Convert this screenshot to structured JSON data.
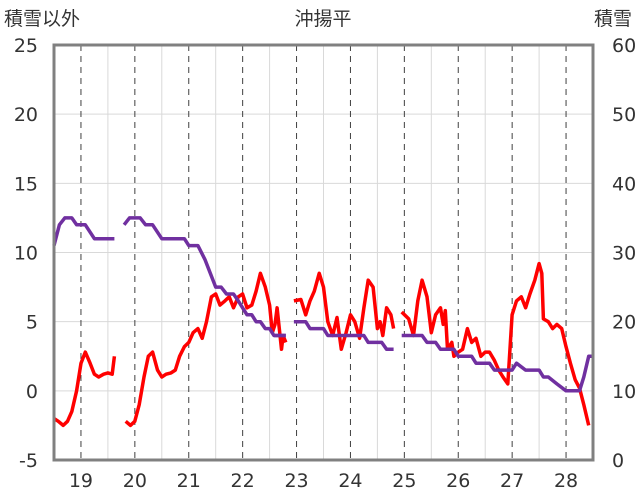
{
  "chart_data": {
    "type": "line",
    "title": "沖揚平",
    "ylabel_left": "積雪以外",
    "ylabel_right": "積雪",
    "categories": [
      "19",
      "20",
      "21",
      "22",
      "23",
      "24",
      "25",
      "26",
      "27",
      "28"
    ],
    "ylim_left": [
      -5,
      25
    ],
    "yticks_left": [
      "-5",
      "0",
      "5",
      "10",
      "15",
      "20",
      "25"
    ],
    "ylim_right": [
      0,
      60
    ],
    "yticks_right": [
      "0",
      "10",
      "20",
      "30",
      "40",
      "50",
      "60"
    ],
    "grid": {
      "horizontal": true,
      "vertical_dashed": true
    },
    "colors": {
      "red_series": "#ff0000",
      "purple_series": "#7030a0",
      "frame": "#808080",
      "grid": "#d9d9d9"
    },
    "series": [
      {
        "axis": "left",
        "color": "#ff0000",
        "segments": [
          [
            [
              18.5,
              -2.0
            ],
            [
              18.58,
              -2.2
            ],
            [
              18.67,
              -2.5
            ],
            [
              18.75,
              -2.2
            ],
            [
              18.83,
              -1.5
            ],
            [
              18.92,
              0.0
            ],
            [
              19.0,
              2.0
            ],
            [
              19.08,
              2.8
            ],
            [
              19.17,
              2.0
            ],
            [
              19.25,
              1.2
            ],
            [
              19.33,
              1.0
            ],
            [
              19.42,
              1.2
            ],
            [
              19.5,
              1.3
            ],
            [
              19.58,
              1.2
            ],
            [
              19.62,
              2.5
            ]
          ],
          [
            [
              19.83,
              -2.2
            ],
            [
              19.92,
              -2.5
            ],
            [
              20.0,
              -2.2
            ],
            [
              20.08,
              -1.0
            ],
            [
              20.17,
              1.0
            ],
            [
              20.25,
              2.5
            ],
            [
              20.33,
              2.8
            ],
            [
              20.42,
              1.5
            ],
            [
              20.5,
              1.0
            ],
            [
              20.58,
              1.2
            ],
            [
              20.67,
              1.3
            ],
            [
              20.75,
              1.5
            ],
            [
              20.83,
              2.5
            ],
            [
              20.92,
              3.2
            ],
            [
              21.0,
              3.5
            ],
            [
              21.08,
              4.2
            ],
            [
              21.17,
              4.5
            ],
            [
              21.25,
              3.8
            ],
            [
              21.33,
              5.0
            ],
            [
              21.42,
              6.8
            ],
            [
              21.5,
              7.0
            ],
            [
              21.58,
              6.2
            ],
            [
              21.67,
              6.5
            ],
            [
              21.75,
              6.8
            ],
            [
              21.83,
              6.0
            ],
            [
              21.92,
              6.8
            ],
            [
              22.0,
              7.0
            ],
            [
              22.08,
              6.0
            ],
            [
              22.17,
              6.2
            ],
            [
              22.25,
              7.2
            ],
            [
              22.33,
              8.5
            ],
            [
              22.42,
              7.5
            ],
            [
              22.5,
              6.2
            ],
            [
              22.55,
              4.2
            ],
            [
              22.6,
              4.8
            ],
            [
              22.64,
              6.0
            ],
            [
              22.68,
              4.5
            ],
            [
              22.72,
              3.0
            ],
            [
              22.75,
              4.0
            ],
            [
              22.8,
              3.5
            ]
          ],
          [
            [
              22.95,
              6.5
            ],
            [
              23.08,
              6.6
            ],
            [
              23.17,
              5.5
            ],
            [
              23.25,
              6.5
            ],
            [
              23.33,
              7.2
            ],
            [
              23.42,
              8.5
            ],
            [
              23.5,
              7.5
            ],
            [
              23.58,
              5.0
            ],
            [
              23.67,
              4.0
            ],
            [
              23.75,
              5.3
            ],
            [
              23.83,
              3.0
            ],
            [
              23.92,
              4.2
            ],
            [
              24.0,
              5.5
            ],
            [
              24.08,
              5.0
            ],
            [
              24.17,
              3.8
            ],
            [
              24.25,
              6.0
            ],
            [
              24.33,
              8.0
            ],
            [
              24.42,
              7.5
            ],
            [
              24.5,
              4.5
            ],
            [
              24.55,
              5.0
            ],
            [
              24.6,
              4.0
            ],
            [
              24.67,
              6.0
            ],
            [
              24.75,
              5.5
            ],
            [
              24.8,
              4.5
            ]
          ],
          [
            [
              24.95,
              5.7
            ],
            [
              25.08,
              5.2
            ],
            [
              25.17,
              4.0
            ],
            [
              25.25,
              6.5
            ],
            [
              25.33,
              8.0
            ],
            [
              25.42,
              6.8
            ],
            [
              25.5,
              4.2
            ],
            [
              25.58,
              5.5
            ],
            [
              25.67,
              6.0
            ],
            [
              25.72,
              4.8
            ],
            [
              25.76,
              5.8
            ],
            [
              25.8,
              3.0
            ],
            [
              25.88,
              3.5
            ],
            [
              25.92,
              2.5
            ],
            [
              26.0,
              2.8
            ],
            [
              26.08,
              3.0
            ],
            [
              26.17,
              4.5
            ],
            [
              26.25,
              3.5
            ],
            [
              26.33,
              3.8
            ],
            [
              26.42,
              2.5
            ],
            [
              26.5,
              2.8
            ],
            [
              26.58,
              2.8
            ],
            [
              26.67,
              2.2
            ],
            [
              26.75,
              1.5
            ],
            [
              26.83,
              1.0
            ],
            [
              26.92,
              0.5
            ],
            [
              27.0,
              5.5
            ],
            [
              27.08,
              6.5
            ],
            [
              27.17,
              6.8
            ],
            [
              27.25,
              6.0
            ],
            [
              27.33,
              7.0
            ],
            [
              27.42,
              8.0
            ],
            [
              27.5,
              9.2
            ],
            [
              27.55,
              8.5
            ],
            [
              27.58,
              5.2
            ],
            [
              27.67,
              5.0
            ],
            [
              27.75,
              4.5
            ],
            [
              27.83,
              4.8
            ],
            [
              27.92,
              4.5
            ],
            [
              28.0,
              3.2
            ],
            [
              28.08,
              2.0
            ],
            [
              28.17,
              0.8
            ],
            [
              28.25,
              0.2
            ],
            [
              28.33,
              -1.0
            ],
            [
              28.42,
              -2.5
            ]
          ]
        ]
      },
      {
        "axis": "right",
        "color": "#7030a0",
        "segments": [
          [
            [
              18.5,
              31
            ],
            [
              18.6,
              34
            ],
            [
              18.7,
              35
            ],
            [
              18.83,
              35
            ],
            [
              18.92,
              34
            ],
            [
              19.08,
              34
            ],
            [
              19.25,
              32
            ],
            [
              19.33,
              32
            ],
            [
              19.5,
              32
            ],
            [
              19.62,
              32
            ]
          ],
          [
            [
              19.8,
              34
            ],
            [
              19.9,
              35
            ],
            [
              20.1,
              35
            ],
            [
              20.2,
              34
            ],
            [
              20.33,
              34
            ],
            [
              20.5,
              32
            ],
            [
              20.58,
              32
            ],
            [
              20.67,
              32
            ],
            [
              20.92,
              32
            ],
            [
              21.0,
              31
            ],
            [
              21.17,
              31
            ],
            [
              21.3,
              29
            ],
            [
              21.4,
              27
            ],
            [
              21.5,
              25
            ],
            [
              21.6,
              25
            ],
            [
              21.7,
              24
            ],
            [
              21.83,
              24
            ],
            [
              21.92,
              23
            ],
            [
              22.0,
              22
            ],
            [
              22.08,
              21
            ],
            [
              22.17,
              21
            ],
            [
              22.25,
              20
            ],
            [
              22.33,
              20
            ],
            [
              22.42,
              19
            ],
            [
              22.5,
              19
            ],
            [
              22.58,
              18
            ],
            [
              22.8,
              18
            ]
          ],
          [
            [
              22.58,
              18
            ],
            [
              22.8,
              18
            ]
          ],
          [
            [
              22.95,
              20
            ],
            [
              23.17,
              20
            ],
            [
              23.25,
              19
            ],
            [
              23.5,
              19
            ],
            [
              23.58,
              18
            ],
            [
              23.67,
              18
            ],
            [
              24.0,
              18
            ],
            [
              24.08,
              18
            ],
            [
              24.25,
              18
            ],
            [
              24.33,
              17
            ],
            [
              24.58,
              17
            ],
            [
              24.67,
              16
            ],
            [
              24.8,
              16
            ]
          ],
          [
            [
              24.95,
              18
            ],
            [
              25.17,
              18
            ],
            [
              25.33,
              18
            ],
            [
              25.42,
              17
            ],
            [
              25.58,
              17
            ],
            [
              25.67,
              16
            ],
            [
              25.92,
              16
            ],
            [
              26.0,
              15
            ],
            [
              26.25,
              15
            ],
            [
              26.33,
              14
            ],
            [
              26.58,
              14
            ],
            [
              26.67,
              13
            ],
            [
              27.0,
              13
            ],
            [
              27.08,
              14
            ],
            [
              27.25,
              13
            ],
            [
              27.5,
              13
            ],
            [
              27.58,
              12
            ],
            [
              27.67,
              12
            ],
            [
              27.83,
              11
            ],
            [
              28.0,
              10
            ],
            [
              28.08,
              10
            ],
            [
              28.25,
              10
            ],
            [
              28.33,
              12
            ],
            [
              28.42,
              15
            ],
            [
              28.5,
              15
            ]
          ]
        ]
      }
    ]
  }
}
